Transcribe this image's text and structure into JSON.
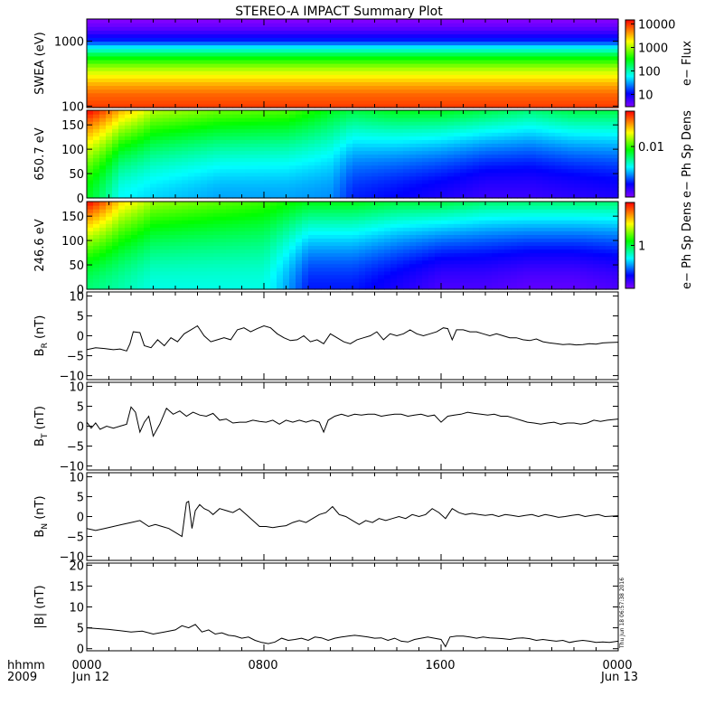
{
  "title": "STEREO-A IMPACT Summary Plot",
  "footer": {
    "time_label": "hhmm",
    "year_label": "2009",
    "x_ticks": [
      "0000",
      "0800",
      "1600",
      "0000"
    ],
    "date_left": "Jun 12",
    "date_right": "Jun 13"
  },
  "timestamp": "Thu Jun 18 06:57:38 2016",
  "chart_data": [
    {
      "type": "heatmap",
      "name": "swea",
      "ylabel": "SWEA (eV)",
      "yscale": "log",
      "ylim": [
        95,
        2200
      ],
      "yticks": [
        100,
        1000
      ],
      "ytick_labels": [
        "100",
        "1000"
      ],
      "colorbar": {
        "label": "e− Flux",
        "scale": "log",
        "range": [
          3,
          15000
        ],
        "ticks": [
          10,
          100,
          1000,
          10000
        ],
        "tick_labels": [
          "10",
          "100",
          "1000",
          "10000"
        ]
      },
      "energy_profile": {
        "energy_ev": [
          100,
          150,
          200,
          300,
          400,
          600,
          800,
          1000,
          1500,
          2000
        ],
        "flux": [
          9000,
          6500,
          4200,
          1800,
          900,
          250,
          60,
          15,
          5,
          3
        ]
      }
    },
    {
      "type": "heatmap",
      "name": "pad650",
      "ylabel": "650.7 eV",
      "ylim": [
        0,
        180
      ],
      "yticks": [
        0,
        50,
        100,
        150
      ],
      "ytick_labels": [
        "0",
        "50",
        "100",
        "150"
      ],
      "colorbar": {
        "label": "e− Ph Sp Dens",
        "scale": "log",
        "range": [
          0.001,
          0.05
        ],
        "ticks": [
          0.01
        ],
        "tick_labels": [
          "0.01"
        ]
      },
      "hours": [
        0,
        1.5,
        3,
        6,
        9,
        11,
        12,
        14,
        16,
        18,
        20,
        22,
        24
      ],
      "top_values": [
        0.05,
        0.025,
        0.015,
        0.012,
        0.011,
        0.008,
        0.007,
        0.008,
        0.008,
        0.007,
        0.006,
        0.007,
        0.007
      ],
      "bottom_values": [
        0.008,
        0.004,
        0.0035,
        0.003,
        0.003,
        0.0028,
        0.002,
        0.0018,
        0.0016,
        0.0014,
        0.0014,
        0.0015,
        0.0016
      ]
    },
    {
      "type": "heatmap",
      "name": "pad246",
      "ylabel": "246.6 eV",
      "ylim": [
        0,
        180
      ],
      "yticks": [
        0,
        50,
        100,
        150
      ],
      "ytick_labels": [
        "0",
        "50",
        "100",
        "150"
      ],
      "colorbar": {
        "label": "e− Ph Sp Dens",
        "scale": "log",
        "range": [
          0.25,
          4
        ],
        "ticks": [
          1
        ],
        "tick_labels": [
          "1"
        ]
      },
      "hours": [
        0,
        1.5,
        3,
        6,
        8,
        10,
        12,
        14,
        16,
        18,
        20,
        22,
        24
      ],
      "top_values": [
        4,
        2.2,
        1.6,
        1.4,
        1.3,
        1.1,
        1.1,
        1.0,
        1.0,
        0.9,
        0.9,
        0.9,
        0.9
      ],
      "bottom_values": [
        0.9,
        0.8,
        0.7,
        0.7,
        0.7,
        0.4,
        0.4,
        0.35,
        0.3,
        0.3,
        0.28,
        0.28,
        0.3
      ]
    },
    {
      "type": "line",
      "name": "br",
      "ylabel_main": "B",
      "ylabel_sub": "R",
      "ylabel_unit": "(nT)",
      "ylim": [
        -11,
        11
      ],
      "yticks": [
        -10,
        -5,
        0,
        5,
        10
      ],
      "ytick_labels": [
        "−10",
        "−5",
        "0",
        "5",
        "10"
      ],
      "xlim": [
        0,
        24
      ],
      "x": [
        0,
        0.4,
        0.8,
        1.2,
        1.5,
        1.8,
        1.95,
        2.1,
        2.4,
        2.6,
        2.9,
        3.2,
        3.5,
        3.8,
        4.1,
        4.4,
        4.7,
        5.0,
        5.3,
        5.6,
        5.9,
        6.2,
        6.5,
        6.8,
        7.1,
        7.4,
        7.7,
        8.0,
        8.3,
        8.6,
        8.9,
        9.2,
        9.5,
        9.8,
        10.1,
        10.4,
        10.7,
        11.0,
        11.3,
        11.6,
        11.9,
        12.2,
        12.5,
        12.8,
        13.1,
        13.4,
        13.7,
        14.0,
        14.3,
        14.6,
        14.9,
        15.2,
        15.5,
        15.8,
        16.1,
        16.3,
        16.5,
        16.7,
        17.0,
        17.3,
        17.6,
        17.9,
        18.2,
        18.5,
        18.8,
        19.1,
        19.4,
        19.7,
        20.0,
        20.3,
        20.6,
        20.9,
        21.2,
        21.5,
        21.8,
        22.1,
        22.4,
        22.7,
        23.0,
        23.3,
        23.6,
        24.0
      ],
      "y": [
        -3.5,
        -3.0,
        -3.2,
        -3.5,
        -3.3,
        -3.8,
        -2.0,
        1.0,
        0.8,
        -2.5,
        -3.0,
        -1.0,
        -2.5,
        -0.5,
        -1.5,
        0.5,
        1.5,
        2.5,
        0.0,
        -1.5,
        -1.0,
        -0.5,
        -1.0,
        1.5,
        2.0,
        1.0,
        1.8,
        2.5,
        2.0,
        0.5,
        -0.5,
        -1.2,
        -1.0,
        0.0,
        -1.5,
        -1.0,
        -2.0,
        0.5,
        -0.5,
        -1.5,
        -2.0,
        -1.0,
        -0.5,
        0.0,
        1.0,
        -1.0,
        0.5,
        0.0,
        0.5,
        1.5,
        0.5,
        0.0,
        0.5,
        1.0,
        2.0,
        1.8,
        -1.0,
        1.5,
        1.5,
        1.0,
        1.0,
        0.5,
        0.0,
        0.5,
        0.0,
        -0.5,
        -0.5,
        -1.0,
        -1.2,
        -0.8,
        -1.5,
        -1.8,
        -2.0,
        -2.2,
        -2.1,
        -2.3,
        -2.2,
        -2.0,
        -2.1,
        -1.8,
        -1.7,
        -1.6
      ]
    },
    {
      "type": "line",
      "name": "bt",
      "ylabel_main": "B",
      "ylabel_sub": "T",
      "ylabel_unit": "(nT)",
      "ylim": [
        -11,
        11
      ],
      "yticks": [
        -10,
        -5,
        0,
        5,
        10
      ],
      "ytick_labels": [
        "−10",
        "−5",
        "0",
        "5",
        "10"
      ],
      "xlim": [
        0,
        24
      ],
      "x": [
        0,
        0.2,
        0.4,
        0.6,
        0.9,
        1.2,
        1.5,
        1.8,
        2.0,
        2.2,
        2.4,
        2.6,
        2.8,
        3.0,
        3.3,
        3.6,
        3.9,
        4.2,
        4.5,
        4.8,
        5.1,
        5.4,
        5.7,
        6.0,
        6.3,
        6.6,
        6.9,
        7.2,
        7.5,
        7.8,
        8.1,
        8.4,
        8.7,
        9.0,
        9.3,
        9.6,
        9.9,
        10.2,
        10.5,
        10.7,
        10.9,
        11.2,
        11.5,
        11.8,
        12.1,
        12.4,
        12.7,
        13.0,
        13.3,
        13.6,
        13.9,
        14.2,
        14.5,
        14.8,
        15.1,
        15.4,
        15.7,
        16.0,
        16.3,
        16.6,
        16.9,
        17.2,
        17.5,
        17.8,
        18.1,
        18.4,
        18.7,
        19.0,
        19.3,
        19.6,
        19.9,
        20.2,
        20.5,
        20.8,
        21.1,
        21.4,
        21.7,
        22.0,
        22.3,
        22.6,
        22.9,
        23.2,
        23.5,
        24.0
      ],
      "y": [
        1.0,
        -0.5,
        0.8,
        -0.8,
        0.0,
        -0.5,
        0.0,
        0.5,
        4.8,
        3.5,
        -1.5,
        1.0,
        2.5,
        -2.5,
        0.5,
        4.5,
        3.0,
        3.8,
        2.5,
        3.5,
        2.8,
        2.5,
        3.2,
        1.5,
        1.8,
        0.8,
        1.0,
        1.0,
        1.5,
        1.2,
        1.0,
        1.5,
        0.5,
        1.5,
        1.0,
        1.5,
        1.0,
        1.5,
        1.0,
        -1.5,
        1.5,
        2.5,
        3.0,
        2.5,
        3.0,
        2.8,
        3.0,
        3.0,
        2.5,
        2.8,
        3.0,
        3.0,
        2.5,
        2.8,
        3.0,
        2.5,
        2.8,
        1.0,
        2.5,
        2.8,
        3.0,
        3.5,
        3.2,
        3.0,
        2.8,
        3.0,
        2.5,
        2.5,
        2.0,
        1.5,
        1.0,
        0.8,
        0.5,
        0.8,
        1.0,
        0.5,
        0.8,
        0.8,
        0.5,
        0.8,
        1.5,
        1.2,
        1.5,
        1.8
      ]
    },
    {
      "type": "line",
      "name": "bn",
      "ylabel_main": "B",
      "ylabel_sub": "N",
      "ylabel_unit": "(nT)",
      "ylim": [
        -11,
        11
      ],
      "yticks": [
        -10,
        -5,
        0,
        5,
        10
      ],
      "ytick_labels": [
        "−10",
        "−5",
        "0",
        "5",
        "10"
      ],
      "xlim": [
        0,
        24
      ],
      "x": [
        0,
        0.4,
        0.8,
        1.2,
        1.6,
        2.0,
        2.4,
        2.8,
        3.1,
        3.4,
        3.7,
        4.0,
        4.3,
        4.5,
        4.6,
        4.75,
        4.9,
        5.1,
        5.3,
        5.5,
        5.7,
        6.0,
        6.3,
        6.6,
        6.9,
        7.2,
        7.5,
        7.8,
        8.1,
        8.4,
        8.7,
        9.0,
        9.3,
        9.6,
        9.9,
        10.2,
        10.5,
        10.8,
        11.1,
        11.4,
        11.7,
        12.0,
        12.3,
        12.6,
        12.9,
        13.2,
        13.5,
        13.8,
        14.1,
        14.4,
        14.7,
        15.0,
        15.3,
        15.6,
        15.9,
        16.2,
        16.5,
        16.8,
        17.1,
        17.4,
        17.7,
        18.0,
        18.3,
        18.6,
        18.9,
        19.2,
        19.5,
        19.8,
        20.1,
        20.4,
        20.7,
        21.0,
        21.3,
        21.6,
        21.9,
        22.2,
        22.5,
        22.8,
        23.1,
        23.4,
        24.0
      ],
      "y": [
        -3.0,
        -3.5,
        -3.0,
        -2.5,
        -2.0,
        -1.5,
        -1.0,
        -2.5,
        -2.0,
        -2.5,
        -3.0,
        -4.0,
        -5.0,
        3.5,
        3.8,
        -3.0,
        1.5,
        3.0,
        2.0,
        1.5,
        0.5,
        2.0,
        1.5,
        1.0,
        2.0,
        0.5,
        -1.0,
        -2.5,
        -2.5,
        -2.8,
        -2.5,
        -2.3,
        -1.5,
        -1.0,
        -1.5,
        -0.5,
        0.5,
        1.0,
        2.5,
        0.5,
        0.0,
        -1.0,
        -2.0,
        -1.0,
        -1.5,
        -0.5,
        -1.0,
        -0.5,
        0.0,
        -0.5,
        0.5,
        0.0,
        0.5,
        2.0,
        1.0,
        -0.5,
        2.0,
        1.0,
        0.5,
        0.8,
        0.5,
        0.3,
        0.5,
        0.0,
        0.5,
        0.3,
        0.0,
        0.3,
        0.5,
        0.0,
        0.5,
        0.2,
        -0.2,
        0.0,
        0.3,
        0.5,
        0.0,
        0.3,
        0.5,
        0.0,
        0.2
      ]
    },
    {
      "type": "line",
      "name": "bmag",
      "ylabel_main": "|B|",
      "ylabel_sub": "",
      "ylabel_unit": "(nT)",
      "ylim": [
        -0.5,
        20.5
      ],
      "yticks": [
        0,
        5,
        10,
        15,
        20
      ],
      "ytick_labels": [
        "0",
        "5",
        "10",
        "15",
        "20"
      ],
      "xlim": [
        0,
        24
      ],
      "x": [
        0,
        0.5,
        1.0,
        1.5,
        2.0,
        2.5,
        3.0,
        3.5,
        4.0,
        4.3,
        4.6,
        4.9,
        5.2,
        5.5,
        5.8,
        6.1,
        6.4,
        6.7,
        7.0,
        7.3,
        7.6,
        7.9,
        8.2,
        8.5,
        8.8,
        9.1,
        9.4,
        9.7,
        10.0,
        10.3,
        10.6,
        10.9,
        11.2,
        11.5,
        11.8,
        12.1,
        12.4,
        12.7,
        13.0,
        13.3,
        13.6,
        13.9,
        14.2,
        14.5,
        14.8,
        15.1,
        15.4,
        15.7,
        16.0,
        16.2,
        16.4,
        16.7,
        17.0,
        17.3,
        17.6,
        17.9,
        18.2,
        18.5,
        18.8,
        19.1,
        19.4,
        19.7,
        20.0,
        20.3,
        20.6,
        20.9,
        21.2,
        21.5,
        21.8,
        22.1,
        22.4,
        22.7,
        23.0,
        23.3,
        23.6,
        24.0
      ],
      "y": [
        5.0,
        4.8,
        4.6,
        4.3,
        4.0,
        4.2,
        3.5,
        4.0,
        4.5,
        5.5,
        5.0,
        5.8,
        4.0,
        4.5,
        3.5,
        3.8,
        3.2,
        3.0,
        2.5,
        2.8,
        2.0,
        1.5,
        1.2,
        1.6,
        2.5,
        2.0,
        2.2,
        2.5,
        2.0,
        2.8,
        2.6,
        2.0,
        2.5,
        2.8,
        3.0,
        3.2,
        3.0,
        2.8,
        2.5,
        2.6,
        2.0,
        2.5,
        1.8,
        1.6,
        2.2,
        2.5,
        2.8,
        2.5,
        2.2,
        0.5,
        2.8,
        3.0,
        3.0,
        2.8,
        2.5,
        2.8,
        2.6,
        2.5,
        2.4,
        2.2,
        2.5,
        2.6,
        2.4,
        2.0,
        2.2,
        2.0,
        1.8,
        2.0,
        1.5,
        1.8,
        2.0,
        1.8,
        1.5,
        1.6,
        1.5,
        1.8
      ]
    }
  ]
}
